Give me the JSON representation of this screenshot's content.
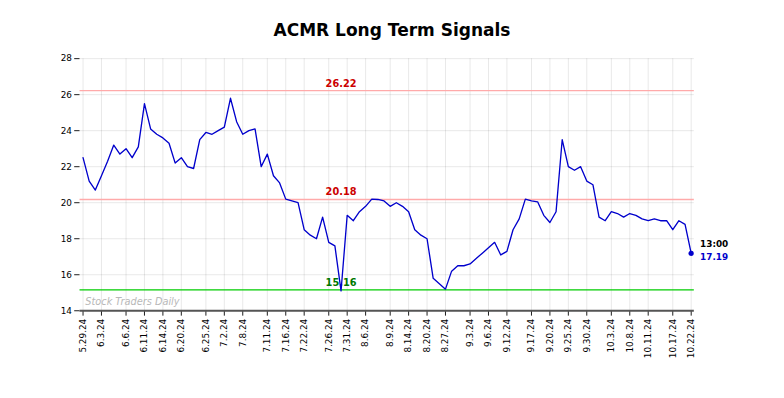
{
  "chart_data": {
    "type": "line",
    "title": "ACMR Long Term Signals",
    "categories": [
      "5.29.24",
      null,
      null,
      "6.3.24",
      null,
      null,
      null,
      "6.6.24",
      null,
      null,
      "6.11.24",
      null,
      null,
      "6.14.24",
      null,
      null,
      "6.20.24",
      null,
      null,
      null,
      "6.25.24",
      null,
      null,
      "7.2.24",
      null,
      null,
      "7.8.24",
      null,
      null,
      null,
      "7.11.24",
      null,
      null,
      "7.16.24",
      null,
      null,
      "7.22.24",
      null,
      null,
      null,
      "7.26.24",
      null,
      null,
      "7.31.24",
      null,
      null,
      "8.6.24",
      null,
      null,
      null,
      "8.9.24",
      null,
      null,
      "8.14.24",
      null,
      null,
      "8.20.24",
      null,
      null,
      "8.27.24",
      null,
      null,
      null,
      "9.3.24",
      null,
      null,
      "9.6.24",
      null,
      null,
      "9.12.24",
      null,
      null,
      null,
      "9.17.24",
      null,
      null,
      "9.20.24",
      null,
      null,
      "9.25.24",
      null,
      null,
      "9.30.24",
      null,
      null,
      null,
      "10.3.24",
      null,
      null,
      "10.8.24",
      null,
      null,
      "10.11.24",
      null,
      null,
      null,
      "10.17.24",
      null,
      null,
      "10.22.24"
    ],
    "values": [
      22.5,
      21.2,
      20.7,
      21.5,
      22.3,
      23.2,
      22.7,
      23.0,
      22.5,
      23.1,
      25.5,
      24.1,
      23.8,
      23.6,
      23.3,
      22.2,
      22.5,
      22.0,
      21.9,
      23.5,
      23.9,
      23.8,
      24.0,
      24.2,
      25.8,
      24.5,
      23.8,
      24.0,
      24.1,
      22.0,
      22.7,
      21.5,
      21.1,
      20.2,
      20.1,
      20.0,
      18.5,
      18.2,
      18.0,
      19.2,
      17.8,
      17.6,
      15.1,
      19.3,
      19.0,
      19.5,
      19.8,
      20.2,
      20.18,
      20.1,
      19.8,
      20.0,
      19.8,
      19.5,
      18.5,
      18.2,
      18.0,
      15.8,
      15.5,
      15.2,
      16.2,
      16.5,
      16.5,
      16.6,
      16.9,
      17.2,
      17.5,
      17.8,
      17.1,
      17.3,
      18.5,
      19.1,
      20.2,
      20.1,
      20.05,
      19.3,
      18.9,
      19.5,
      23.5,
      22.0,
      21.8,
      22.0,
      21.2,
      21.0,
      19.2,
      19.0,
      19.5,
      19.4,
      19.2,
      19.4,
      19.3,
      19.1,
      19.0,
      19.1,
      19.0,
      19.0,
      18.5,
      19.0,
      18.8,
      17.19
    ],
    "color": "#0000cc",
    "ylim": [
      14,
      28
    ],
    "yticks": [
      14,
      16,
      18,
      20,
      22,
      24,
      26,
      28
    ],
    "grid": true,
    "reference_lines": [
      {
        "y": 26.22,
        "label": "26.22",
        "color": "#ffaaaa",
        "label_color": "#cc0000"
      },
      {
        "y": 20.18,
        "label": "20.18",
        "color": "#ffaaaa",
        "label_color": "#cc0000"
      },
      {
        "y": 15.16,
        "label": "15.16",
        "color": "#00cc00",
        "label_color": "#007700"
      }
    ],
    "last_labels": [
      {
        "text": "13:00",
        "color": "#000000"
      },
      {
        "text": "17.19",
        "color": "#0000cc"
      }
    ],
    "watermark": "Stock Traders Daily"
  }
}
